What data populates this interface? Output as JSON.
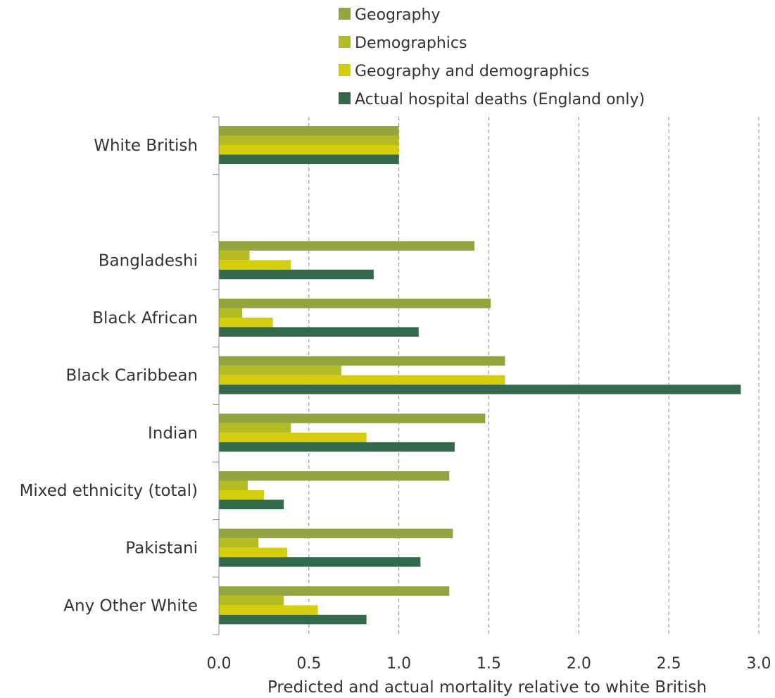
{
  "chart_data": {
    "type": "bar",
    "orientation": "horizontal",
    "xlabel": "Predicted and actual mortality relative to white British",
    "xlim": [
      0,
      3.0
    ],
    "xticks": [
      "0.0",
      "0.5",
      "1.0",
      "1.5",
      "2.0",
      "2.5",
      "3.0"
    ],
    "grid": "vertical-dashed",
    "legend_position": "top",
    "categories": [
      "White British",
      "",
      "Bangladeshi",
      "Black African",
      "Black Caribbean",
      "Indian",
      "Mixed ethnicity (total)",
      "Pakistani",
      "Any Other White"
    ],
    "series": [
      {
        "name": "Geography",
        "color": "#93a53f",
        "values": [
          1.0,
          null,
          1.42,
          1.51,
          1.59,
          1.48,
          1.28,
          1.3,
          1.28
        ]
      },
      {
        "name": "Demographics",
        "color": "#b3bd23",
        "values": [
          1.0,
          null,
          0.17,
          0.13,
          0.68,
          0.4,
          0.16,
          0.22,
          0.36
        ]
      },
      {
        "name": "Geography and demographics",
        "color": "#d6cd0c",
        "values": [
          1.0,
          null,
          0.4,
          0.3,
          1.59,
          0.82,
          0.25,
          0.38,
          0.55
        ]
      },
      {
        "name": "Actual hospital deaths (England only)",
        "color": "#336a4c",
        "values": [
          1.0,
          null,
          0.86,
          1.11,
          2.9,
          1.31,
          0.36,
          1.12,
          0.82
        ]
      }
    ]
  }
}
